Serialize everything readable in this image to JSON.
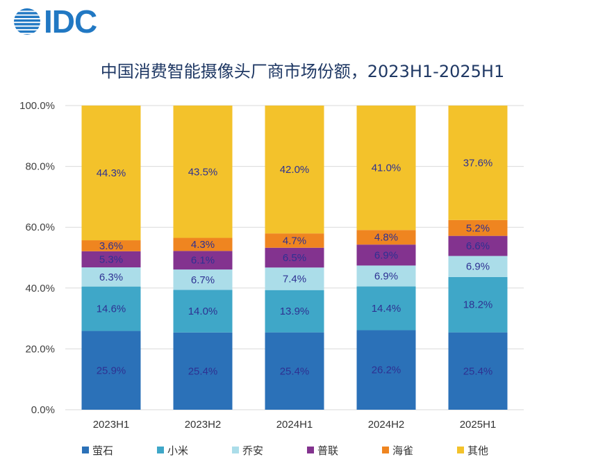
{
  "logo": {
    "text": "IDC",
    "color": "#2178c3"
  },
  "chart_data": {
    "type": "bar",
    "stacked": true,
    "title": "中国消费智能摄像头厂商市场份额，2023H1-2025H1",
    "categories": [
      "2023H1",
      "2023H2",
      "2024H1",
      "2024H2",
      "2025H1"
    ],
    "ylim": [
      0,
      100
    ],
    "yticks": [
      0,
      20,
      40,
      60,
      80,
      100
    ],
    "ytick_labels": [
      "0.0%",
      "20.0%",
      "40.0%",
      "60.0%",
      "80.0%",
      "100.0%"
    ],
    "grid": true,
    "legend": "bottom",
    "title_color": "#1f3864",
    "label_color": "#2e3192",
    "series": [
      {
        "name": "萤石",
        "color": "#2b71b8",
        "values": [
          25.9,
          25.4,
          25.4,
          26.2,
          25.4
        ],
        "labels": [
          "25.9%",
          "25.4%",
          "25.4%",
          "26.2%",
          "25.4%"
        ]
      },
      {
        "name": "小米",
        "color": "#3fa7c8",
        "values": [
          14.6,
          14.0,
          13.9,
          14.4,
          18.2
        ],
        "labels": [
          "14.6%",
          "14.0%",
          "13.9%",
          "14.4%",
          "18.2%"
        ]
      },
      {
        "name": "乔安",
        "color": "#abdde9",
        "values": [
          6.3,
          6.7,
          7.4,
          6.9,
          6.9
        ],
        "labels": [
          "6.3%",
          "6.7%",
          "7.4%",
          "6.9%",
          "6.9%"
        ]
      },
      {
        "name": "普联",
        "color": "#83338f",
        "values": [
          5.3,
          6.1,
          6.5,
          6.9,
          6.6
        ],
        "labels": [
          "5.3%",
          "6.1%",
          "6.5%",
          "6.9%",
          "6.6%"
        ]
      },
      {
        "name": "海雀",
        "color": "#ef8520",
        "values": [
          3.6,
          4.3,
          4.7,
          4.8,
          5.2
        ],
        "labels": [
          "3.6%",
          "4.3%",
          "4.7%",
          "4.8%",
          "5.2%"
        ]
      },
      {
        "name": "其他",
        "color": "#f3c22b",
        "values": [
          44.3,
          43.5,
          42.0,
          41.0,
          37.6
        ],
        "labels": [
          "44.3%",
          "43.5%",
          "42.0%",
          "41.0%",
          "37.6%"
        ]
      }
    ]
  }
}
